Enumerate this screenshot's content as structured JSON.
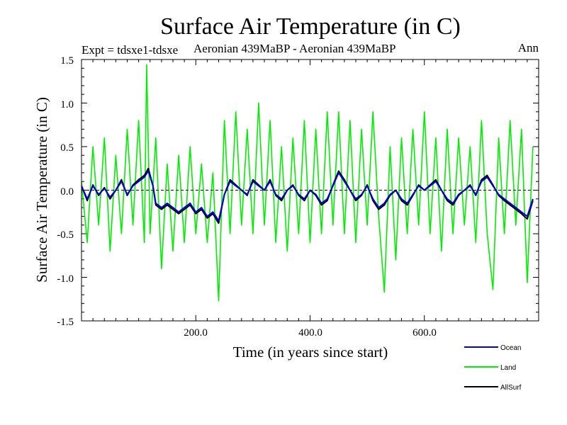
{
  "header": {
    "title": "Surface Air Temperature (in C)",
    "expt": "Expt = tdsxe1-tdsxe",
    "period": "Aeronian 439MaBP - Aeronian 439MaBP",
    "season": "Ann"
  },
  "colors": {
    "ocean": "#0000dd",
    "land": "#00ee00",
    "allsurf": "#000000",
    "zero_line": "#000000"
  },
  "chart_data": {
    "type": "line",
    "title": "Surface Air Temperature (in C)",
    "xlabel": "Time (in years since start)",
    "ylabel": "Surface Air Temperature (in C)",
    "xlim": [
      0,
      800
    ],
    "ylim": [
      -1.5,
      1.5
    ],
    "x_ticks": [
      200,
      400,
      600
    ],
    "x_tick_labels": [
      "200.0",
      "400.0",
      "600.0"
    ],
    "y_ticks": [
      -1.5,
      -1.0,
      -0.5,
      0.0,
      0.5,
      1.0,
      1.5
    ],
    "y_tick_labels": [
      "-1.5",
      "-1.0",
      "-0.5",
      "0.0",
      "0.5",
      "1.0",
      "1.5"
    ],
    "reference_line": 0.0,
    "legend": [
      "Ocean",
      "Land",
      "AllSurf"
    ],
    "legend_position": "bottom-right",
    "series": [
      {
        "name": "Land",
        "x": [
          0,
          10,
          20,
          30,
          40,
          50,
          60,
          70,
          80,
          90,
          100,
          110,
          114,
          120,
          130,
          140,
          150,
          160,
          170,
          180,
          190,
          200,
          210,
          220,
          230,
          240,
          250,
          260,
          270,
          280,
          290,
          300,
          310,
          320,
          330,
          340,
          350,
          360,
          370,
          380,
          390,
          400,
          410,
          420,
          430,
          440,
          450,
          460,
          470,
          480,
          490,
          500,
          510,
          520,
          530,
          540,
          550,
          560,
          570,
          580,
          590,
          600,
          610,
          620,
          630,
          640,
          650,
          660,
          670,
          680,
          690,
          700,
          710,
          720,
          730,
          740,
          750,
          760,
          770,
          780,
          790
        ],
        "values": [
          0.1,
          -0.6,
          0.5,
          -0.4,
          0.6,
          -0.7,
          0.4,
          -0.5,
          0.7,
          -0.4,
          0.8,
          -0.6,
          1.44,
          -0.5,
          0.6,
          -0.9,
          0.3,
          -0.7,
          0.4,
          -0.6,
          0.5,
          -0.5,
          0.3,
          -0.6,
          0.2,
          -1.27,
          0.8,
          -0.5,
          0.9,
          -0.4,
          0.7,
          -0.5,
          1.0,
          -0.4,
          0.8,
          -0.6,
          0.5,
          -0.7,
          0.6,
          -0.5,
          0.8,
          -0.6,
          0.7,
          -0.5,
          0.9,
          -0.4,
          0.9,
          -0.5,
          0.8,
          -0.6,
          0.7,
          -0.4,
          0.9,
          -0.3,
          -1.17,
          0.5,
          -0.8,
          0.6,
          -0.5,
          0.7,
          -0.4,
          0.9,
          -0.5,
          0.6,
          -0.7,
          0.7,
          -0.5,
          0.6,
          -0.4,
          0.5,
          -0.6,
          0.8,
          -0.5,
          -1.14,
          0.6,
          -0.5,
          0.8,
          -0.4,
          0.7,
          -1.06,
          0.5
        ]
      },
      {
        "name": "Ocean",
        "x": [
          0,
          10,
          20,
          30,
          40,
          50,
          60,
          70,
          80,
          90,
          100,
          110,
          117,
          125,
          130,
          140,
          150,
          160,
          170,
          180,
          190,
          200,
          210,
          220,
          230,
          240,
          250,
          260,
          270,
          280,
          290,
          300,
          310,
          320,
          330,
          340,
          350,
          360,
          370,
          380,
          390,
          400,
          410,
          420,
          430,
          440,
          450,
          460,
          470,
          480,
          490,
          500,
          510,
          520,
          530,
          540,
          550,
          560,
          570,
          580,
          590,
          600,
          610,
          620,
          630,
          640,
          650,
          660,
          670,
          680,
          690,
          700,
          710,
          720,
          730,
          740,
          750,
          760,
          770,
          780,
          790
        ],
        "values": [
          0.05,
          -0.1,
          0.05,
          -0.05,
          0.02,
          -0.08,
          0.0,
          0.1,
          -0.05,
          0.05,
          0.1,
          0.15,
          0.22,
          0.05,
          -0.15,
          -0.2,
          -0.15,
          -0.2,
          -0.25,
          -0.2,
          -0.15,
          -0.25,
          -0.2,
          -0.3,
          -0.25,
          -0.35,
          -0.05,
          0.1,
          0.05,
          0.0,
          -0.05,
          0.1,
          0.05,
          0.0,
          0.1,
          -0.05,
          -0.1,
          0.0,
          0.05,
          -0.05,
          -0.1,
          0.0,
          -0.05,
          -0.15,
          -0.1,
          0.05,
          0.2,
          0.1,
          0.0,
          -0.1,
          -0.05,
          0.05,
          -0.1,
          -0.2,
          -0.15,
          -0.05,
          0.0,
          -0.1,
          -0.15,
          -0.05,
          0.05,
          0.0,
          0.05,
          0.1,
          0.0,
          -0.1,
          -0.15,
          -0.05,
          0.0,
          0.05,
          -0.05,
          0.1,
          0.15,
          0.05,
          -0.05,
          -0.1,
          -0.15,
          -0.2,
          -0.25,
          -0.3,
          -0.1
        ]
      },
      {
        "name": "AllSurf",
        "x": [
          0,
          10,
          20,
          30,
          40,
          50,
          60,
          70,
          80,
          90,
          100,
          110,
          117,
          125,
          130,
          140,
          150,
          160,
          170,
          180,
          190,
          200,
          210,
          220,
          230,
          240,
          250,
          260,
          270,
          280,
          290,
          300,
          310,
          320,
          330,
          340,
          350,
          360,
          370,
          380,
          390,
          400,
          410,
          420,
          430,
          440,
          450,
          460,
          470,
          480,
          490,
          500,
          510,
          520,
          530,
          540,
          550,
          560,
          570,
          580,
          590,
          600,
          610,
          620,
          630,
          640,
          650,
          660,
          670,
          680,
          690,
          700,
          710,
          720,
          730,
          740,
          750,
          760,
          770,
          780,
          790
        ],
        "values": [
          0.05,
          -0.12,
          0.06,
          -0.06,
          0.03,
          -0.1,
          0.0,
          0.12,
          -0.06,
          0.06,
          0.12,
          0.17,
          0.25,
          0.05,
          -0.17,
          -0.22,
          -0.17,
          -0.22,
          -0.27,
          -0.22,
          -0.17,
          -0.27,
          -0.22,
          -0.32,
          -0.27,
          -0.38,
          -0.05,
          0.12,
          0.06,
          0.0,
          -0.06,
          0.12,
          0.06,
          0.0,
          0.12,
          -0.06,
          -0.12,
          0.0,
          0.06,
          -0.06,
          -0.12,
          0.0,
          -0.06,
          -0.17,
          -0.12,
          0.06,
          0.22,
          0.12,
          0.0,
          -0.12,
          -0.06,
          0.06,
          -0.12,
          -0.22,
          -0.17,
          -0.06,
          0.0,
          -0.12,
          -0.17,
          -0.06,
          0.06,
          0.0,
          0.06,
          0.12,
          0.0,
          -0.12,
          -0.17,
          -0.06,
          0.0,
          0.06,
          -0.06,
          0.12,
          0.17,
          0.06,
          -0.06,
          -0.12,
          -0.17,
          -0.22,
          -0.27,
          -0.33,
          -0.12
        ]
      }
    ]
  }
}
